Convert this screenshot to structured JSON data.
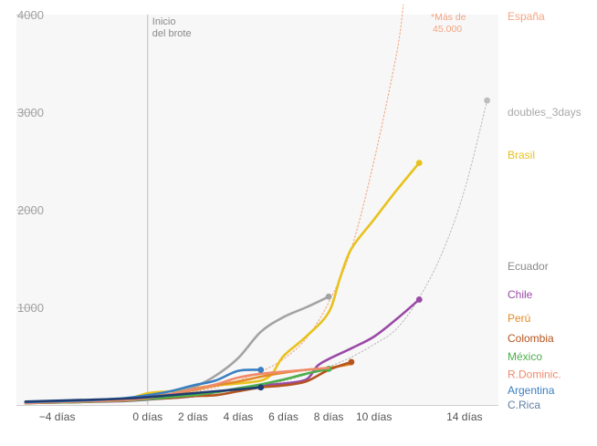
{
  "chart_data": {
    "type": "line",
    "title": "",
    "xlabel": "",
    "ylabel": "",
    "xlim": [
      -5.8,
      15.5
    ],
    "ylim": [
      0,
      4000
    ],
    "x_ticks": [
      {
        "x": -4,
        "label": "−4 días"
      },
      {
        "x": 0,
        "label": "0 días"
      },
      {
        "x": 2,
        "label": "2 días"
      },
      {
        "x": 4,
        "label": "4 días"
      },
      {
        "x": 6,
        "label": "6 días"
      },
      {
        "x": 8,
        "label": "8 días"
      },
      {
        "x": 10,
        "label": "10 días"
      },
      {
        "x": 14,
        "label": "14 días"
      }
    ],
    "y_ticks": [
      {
        "y": 1000,
        "label": "1000"
      },
      {
        "y": 2000,
        "label": "2000"
      },
      {
        "y": 3000,
        "label": "3000"
      },
      {
        "y": 4000,
        "label": "4000"
      }
    ],
    "annotations": {
      "outbreak": {
        "x": 0,
        "line1": "Inicio",
        "line2": "del brote"
      },
      "spain_note": {
        "line1": "*Más de",
        "line2": "45.000",
        "color": "#f4a582"
      }
    },
    "grid": false,
    "background": "#f7f7f7",
    "series": [
      {
        "name": "España",
        "color": "#f4a582",
        "dashed": true,
        "end_marker": false,
        "x": [
          -5.4,
          -3,
          -1,
          0,
          1,
          2,
          3,
          4,
          5,
          6,
          7,
          8,
          9,
          10,
          11,
          11.3
        ],
        "y": [
          20,
          30,
          45,
          60,
          90,
          130,
          180,
          250,
          340,
          470,
          680,
          1050,
          1600,
          2500,
          3600,
          4100
        ]
      },
      {
        "name": "doubles_3days",
        "color": "#bdbdbd",
        "dashed": true,
        "end_marker": true,
        "x": [
          -5.4,
          -3,
          -1,
          0,
          1,
          2,
          3,
          4,
          5,
          6,
          7,
          8,
          9,
          10,
          11,
          12,
          13,
          14,
          15
        ],
        "y": [
          30,
          40,
          55,
          65,
          80,
          100,
          125,
          155,
          195,
          245,
          310,
          390,
          490,
          620,
          780,
          1100,
          1550,
          2200,
          3120
        ]
      },
      {
        "name": "Brasil",
        "color": "#e8c21c",
        "dashed": false,
        "end_marker": true,
        "x": [
          -5.4,
          -3,
          -1,
          0,
          1,
          2,
          3,
          4,
          5,
          5.5,
          6,
          7,
          8,
          8.5,
          9,
          10,
          11,
          12
        ],
        "y": [
          20,
          35,
          60,
          120,
          140,
          170,
          200,
          220,
          250,
          320,
          500,
          700,
          950,
          1300,
          1600,
          1900,
          2200,
          2480
        ]
      },
      {
        "name": "Ecuador",
        "color": "#a3a3a3",
        "dashed": false,
        "end_marker": true,
        "x": [
          -5.4,
          -3,
          -1,
          0,
          1,
          2,
          3,
          4,
          5,
          6,
          7,
          8
        ],
        "y": [
          30,
          40,
          60,
          80,
          110,
          180,
          300,
          480,
          750,
          900,
          1000,
          1110
        ]
      },
      {
        "name": "Chile",
        "color": "#9a4aa6",
        "dashed": false,
        "end_marker": true,
        "x": [
          -5.4,
          -3,
          -1,
          0,
          1,
          2,
          3,
          4,
          5,
          6,
          7,
          7.5,
          8,
          9,
          10,
          11,
          12
        ],
        "y": [
          20,
          30,
          40,
          55,
          70,
          90,
          130,
          170,
          200,
          220,
          260,
          400,
          470,
          580,
          700,
          880,
          1080
        ]
      },
      {
        "name": "Perú",
        "color": "#e38a26",
        "dashed": false,
        "end_marker": false,
        "x": [
          -5.4,
          -3,
          -1,
          0,
          1,
          2,
          3,
          4,
          5,
          6,
          7,
          8,
          9
        ],
        "y": [
          25,
          35,
          55,
          80,
          110,
          150,
          200,
          240,
          290,
          330,
          360,
          380,
          420
        ]
      },
      {
        "name": "Colombia",
        "color": "#b5541e",
        "dashed": false,
        "end_marker": true,
        "x": [
          -5.4,
          -3,
          -1,
          0,
          1,
          2,
          3,
          4,
          5,
          6,
          7,
          8,
          9
        ],
        "y": [
          20,
          30,
          45,
          60,
          70,
          90,
          100,
          140,
          180,
          200,
          240,
          360,
          440
        ]
      },
      {
        "name": "México",
        "color": "#4cae4c",
        "dashed": false,
        "end_marker": true,
        "x": [
          -5.4,
          -3,
          -1,
          0,
          1,
          2,
          3,
          4,
          5,
          6,
          7,
          8
        ],
        "y": [
          20,
          30,
          45,
          60,
          80,
          100,
          130,
          170,
          210,
          260,
          320,
          370
        ]
      },
      {
        "name": "R.Dominic.",
        "color": "#ef8a6a",
        "dashed": false,
        "end_marker": false,
        "x": [
          -5.4,
          -3,
          -1,
          0,
          1,
          2,
          3,
          4,
          5,
          6,
          7,
          8
        ],
        "y": [
          20,
          35,
          50,
          70,
          110,
          160,
          210,
          280,
          320,
          340,
          360,
          380
        ]
      },
      {
        "name": "Argentina",
        "color": "#3a7fc1",
        "dashed": false,
        "end_marker": true,
        "x": [
          -5.4,
          -3,
          -1,
          0,
          1,
          2,
          3,
          4,
          5
        ],
        "y": [
          30,
          45,
          70,
          100,
          140,
          200,
          250,
          350,
          360
        ]
      },
      {
        "name": "C.Rica",
        "color": "#1f3d72",
        "dashed": false,
        "end_marker": true,
        "x": [
          -5.4,
          -3,
          -1,
          0,
          1,
          2,
          3,
          4,
          5
        ],
        "y": [
          35,
          50,
          65,
          80,
          100,
          120,
          140,
          160,
          180
        ]
      }
    ],
    "legend_labels": [
      {
        "text": "España",
        "color": "#f4a582",
        "value": 4000
      },
      {
        "text": "doubles_3days",
        "color": "#a9a9a9",
        "value": 3000
      },
      {
        "text": "Brasil",
        "color": "#e8c21c",
        "value": 2560
      },
      {
        "text": "Ecuador",
        "color": "#8a8a8a",
        "value": 1420
      },
      {
        "text": "Chile",
        "color": "#9a4aa6",
        "value": 1130
      },
      {
        "text": "Perú",
        "color": "#e38a26",
        "value": 890
      },
      {
        "text": "Colombia",
        "color": "#b5541e",
        "value": 680
      },
      {
        "text": "México",
        "color": "#4cae4c",
        "value": 495
      },
      {
        "text": "R.Dominic.",
        "color": "#ef8a6a",
        "value": 315
      },
      {
        "text": "Argentina",
        "color": "#3a7fc1",
        "value": 150
      },
      {
        "text": "C.Rica",
        "color": "#5f7fa6",
        "value": 0
      }
    ]
  }
}
